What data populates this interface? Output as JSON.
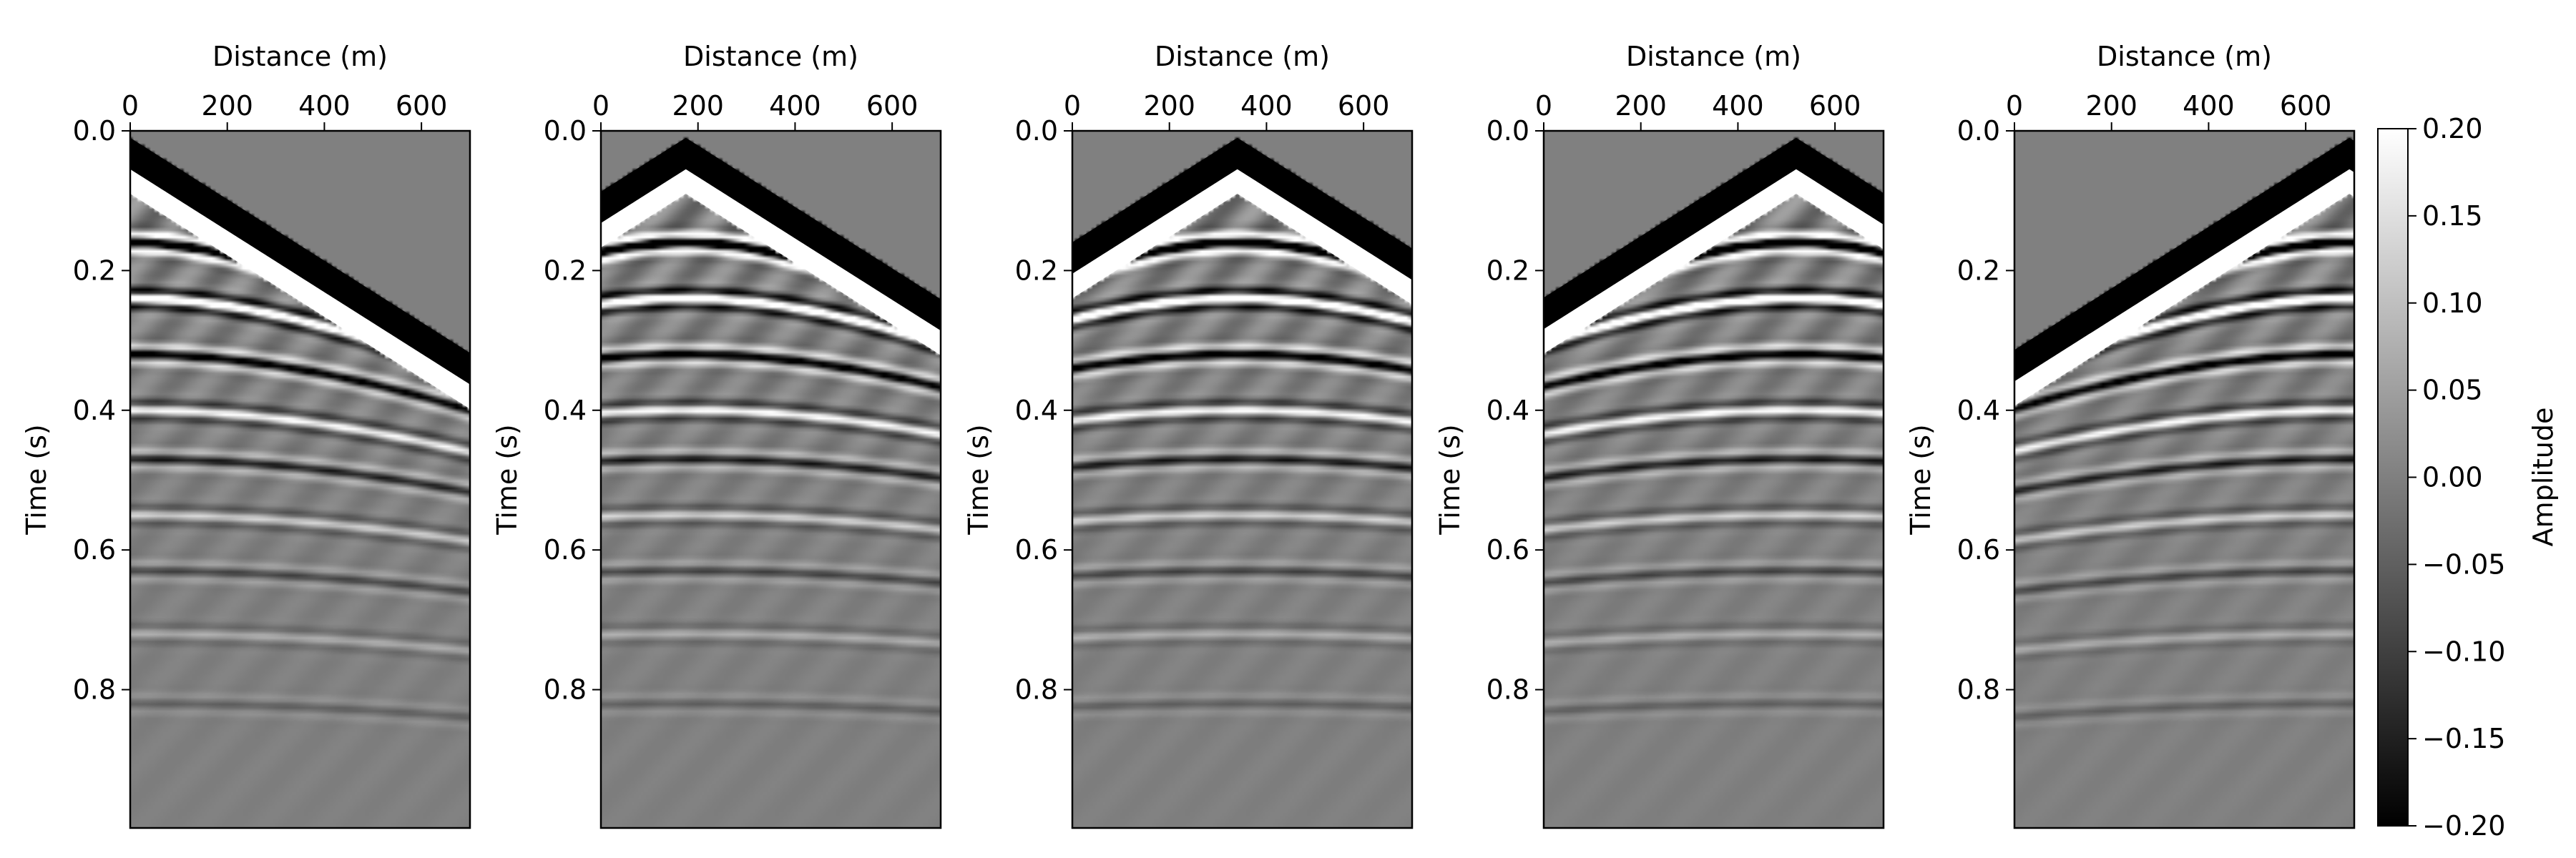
{
  "figure": {
    "background": "#ffffff",
    "colormap": [
      "#000000",
      "#ffffff"
    ]
  },
  "chart_data": [
    {
      "type": "heatmap",
      "panel": 1,
      "xlabel": "Distance (m)",
      "ylabel": "Time (s)",
      "x_axis_position": "top",
      "xlim": [
        0,
        700
      ],
      "ylim": [
        0.998,
        0.0
      ],
      "xticks": [
        0,
        200,
        400,
        600
      ],
      "xtick_labels": [
        "0",
        "200",
        "400",
        "600"
      ],
      "yticks": [
        0.0,
        0.2,
        0.4,
        0.6,
        0.8
      ],
      "ytick_labels": [
        "0.0",
        "0.2",
        "0.4",
        "0.6",
        "0.8"
      ],
      "source_x": 0,
      "first_arrival_intercept_s": 0.07,
      "first_arrival_slowness_s_per_m": 0.00044,
      "vmin": -0.2,
      "vmax": 0.2
    },
    {
      "type": "heatmap",
      "panel": 2,
      "xlabel": "Distance (m)",
      "ylabel": "Time (s)",
      "x_axis_position": "top",
      "xlim": [
        0,
        700
      ],
      "ylim": [
        0.998,
        0.0
      ],
      "xticks": [
        0,
        200,
        400,
        600
      ],
      "xtick_labels": [
        "0",
        "200",
        "400",
        "600"
      ],
      "yticks": [
        0.0,
        0.2,
        0.4,
        0.6,
        0.8
      ],
      "ytick_labels": [
        "0.0",
        "0.2",
        "0.4",
        "0.6",
        "0.8"
      ],
      "source_x": 175,
      "first_arrival_intercept_s": 0.07,
      "first_arrival_slowness_s_per_m": 0.00044,
      "vmin": -0.2,
      "vmax": 0.2
    },
    {
      "type": "heatmap",
      "panel": 3,
      "xlabel": "Distance (m)",
      "ylabel": "Time (s)",
      "x_axis_position": "top",
      "xlim": [
        0,
        700
      ],
      "ylim": [
        0.998,
        0.0
      ],
      "xticks": [
        0,
        200,
        400,
        600
      ],
      "xtick_labels": [
        "0",
        "200",
        "400",
        "600"
      ],
      "yticks": [
        0.0,
        0.2,
        0.4,
        0.6,
        0.8
      ],
      "ytick_labels": [
        "0.0",
        "0.2",
        "0.4",
        "0.6",
        "0.8"
      ],
      "source_x": 340,
      "first_arrival_intercept_s": 0.07,
      "first_arrival_slowness_s_per_m": 0.00044,
      "vmin": -0.2,
      "vmax": 0.2
    },
    {
      "type": "heatmap",
      "panel": 4,
      "xlabel": "Distance (m)",
      "ylabel": "Time (s)",
      "x_axis_position": "top",
      "xlim": [
        0,
        700
      ],
      "ylim": [
        0.998,
        0.0
      ],
      "xticks": [
        0,
        200,
        400,
        600
      ],
      "xtick_labels": [
        "0",
        "200",
        "400",
        "600"
      ],
      "yticks": [
        0.0,
        0.2,
        0.4,
        0.6,
        0.8
      ],
      "ytick_labels": [
        "0.0",
        "0.2",
        "0.4",
        "0.6",
        "0.8"
      ],
      "source_x": 520,
      "first_arrival_intercept_s": 0.07,
      "first_arrival_slowness_s_per_m": 0.00044,
      "vmin": -0.2,
      "vmax": 0.2
    },
    {
      "type": "heatmap",
      "panel": 5,
      "xlabel": "Distance (m)",
      "ylabel": "Time (s)",
      "x_axis_position": "top",
      "xlim": [
        0,
        700
      ],
      "ylim": [
        0.998,
        0.0
      ],
      "xticks": [
        0,
        200,
        400,
        600
      ],
      "xtick_labels": [
        "0",
        "200",
        "400",
        "600"
      ],
      "yticks": [
        0.0,
        0.2,
        0.4,
        0.6,
        0.8
      ],
      "ytick_labels": [
        "0.0",
        "0.2",
        "0.4",
        "0.6",
        "0.8"
      ],
      "source_x": 690,
      "first_arrival_intercept_s": 0.07,
      "first_arrival_slowness_s_per_m": 0.00044,
      "vmin": -0.2,
      "vmax": 0.2
    }
  ],
  "colorbar": {
    "label": "Amplitude",
    "vmin": -0.2,
    "vmax": 0.2,
    "ticks": [
      0.2,
      0.15,
      0.1,
      0.05,
      0.0,
      -0.05,
      -0.1,
      -0.15,
      -0.2
    ],
    "tick_labels": [
      "0.20",
      "0.15",
      "0.10",
      "0.05",
      "0.00",
      "−0.05",
      "−0.10",
      "−0.15",
      "−0.20"
    ]
  }
}
